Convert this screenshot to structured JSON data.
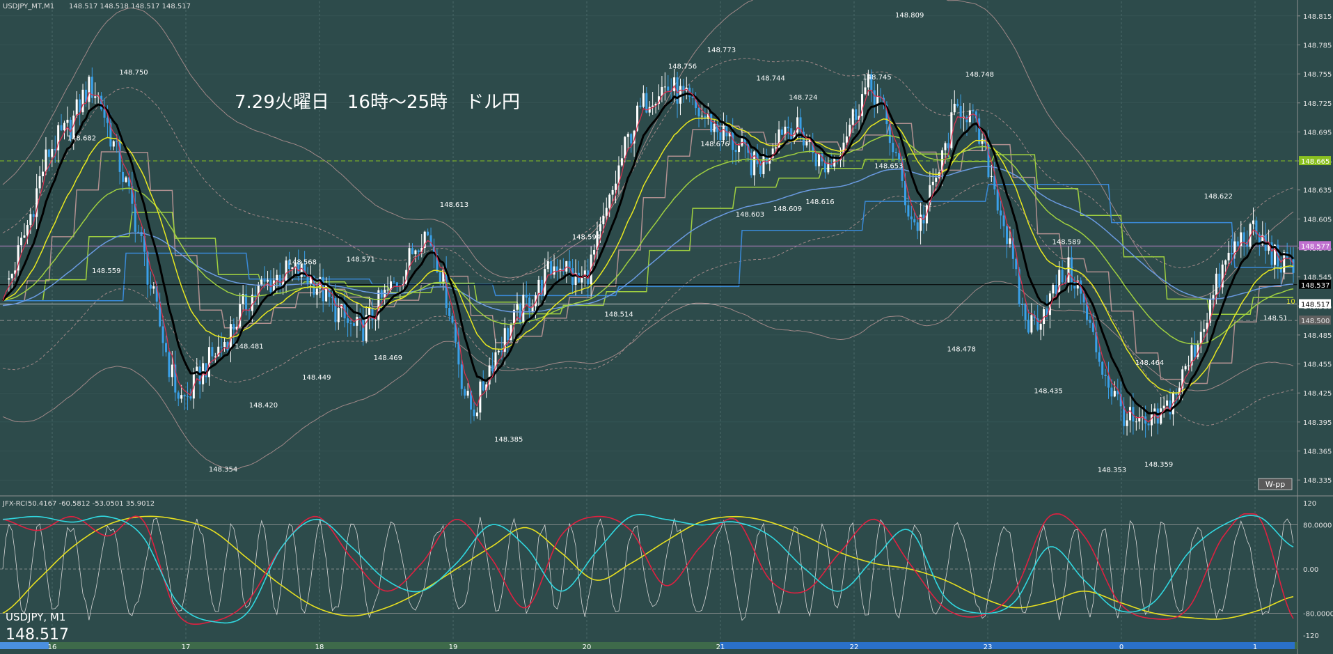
{
  "header": {
    "symbol_info": "USDJPY_MT,M1",
    "ohlc": "148.517 148.518 148.517 148.517"
  },
  "annotation_title": "7.29火曜日　16時～25時　ドル円",
  "indicator_header": {
    "name": "JFX-RCI",
    "values": "50.4167 -60.5812 -53.0501 35.9012"
  },
  "symbol_overlay": {
    "symbol": "USDJPY, M1",
    "price": "148.517"
  },
  "wpp_button": "W-pp",
  "right_edge_label": "10",
  "colors": {
    "background": "#2d4b4b",
    "candle": "#3aa0e8",
    "ma_fast": "#e03050",
    "ma_black": "#000000",
    "ma_yellow": "#e8e820",
    "ma_green": "#a0d040",
    "ma_blue": "#6a9ae0",
    "bands": "#a08888",
    "step_pink": "#b09090",
    "step_green": "#a0d040",
    "step_blue": "#3a8ad8",
    "pivot_green": "#8ac020",
    "pivot_purple": "#b080c0",
    "rci_white": "#d8d8d8",
    "rci_red": "#e02040",
    "rci_cyan": "#30d8e0",
    "rci_yellow": "#e8e020"
  },
  "chart_data": [
    {
      "type": "candlestick",
      "title": "",
      "ylim": [
        148.32,
        148.83
      ],
      "yticks": [
        "148.815",
        "148.785",
        "148.755",
        "148.725",
        "148.695",
        "148.665",
        "148.635",
        "148.605",
        "148.575",
        "148.545",
        "148.515",
        "148.485",
        "148.455",
        "148.425",
        "148.395",
        "148.365",
        "148.335"
      ],
      "x_tick_labels": [
        "16",
        "17",
        "18",
        "19",
        "20",
        "21",
        "22",
        "23",
        "0",
        "1"
      ],
      "hlines": [
        {
          "label": "148.665",
          "value": 148.665,
          "color": "#8ac020",
          "dashed": true
        },
        {
          "label": "148.577",
          "value": 148.577,
          "color": "#b080c0",
          "dashed": false
        },
        {
          "label": "148.537",
          "value": 148.537,
          "color": "#000000",
          "dashed": false
        },
        {
          "label": "148.517",
          "value": 148.517,
          "color": "#d0d0d0",
          "dashed": false
        },
        {
          "label": "148.500",
          "value": 148.5,
          "color": "#909090",
          "dashed": true
        }
      ],
      "price_anchors": [
        148.53,
        148.59,
        148.67,
        148.7,
        148.74,
        148.68,
        148.6,
        148.5,
        148.42,
        148.45,
        148.48,
        148.52,
        148.54,
        148.55,
        148.54,
        148.51,
        148.49,
        148.52,
        148.55,
        148.59,
        148.52,
        148.41,
        148.46,
        148.5,
        148.53,
        148.56,
        148.54,
        148.6,
        148.68,
        148.73,
        148.74,
        148.72,
        148.7,
        148.68,
        148.66,
        148.7,
        148.69,
        148.66,
        148.7,
        148.74,
        148.68,
        148.6,
        148.65,
        148.72,
        148.68,
        148.6,
        148.5,
        148.52,
        148.55,
        148.48,
        148.42,
        148.39,
        148.4,
        148.44,
        148.5,
        148.56,
        148.59,
        148.57,
        148.55
      ],
      "price_labels": [
        {
          "text": "148.682",
          "value": 148.682,
          "idx": 0.063
        },
        {
          "text": "148.559",
          "value": 148.559,
          "idx": 0.082
        },
        {
          "text": "148.750",
          "value": 148.75,
          "idx": 0.103
        },
        {
          "text": "148.354",
          "value": 148.354,
          "idx": 0.172
        },
        {
          "text": "148.481",
          "value": 148.481,
          "idx": 0.192
        },
        {
          "text": "148.420",
          "value": 148.42,
          "idx": 0.203
        },
        {
          "text": "148.568",
          "value": 148.568,
          "idx": 0.233
        },
        {
          "text": "148.449",
          "value": 148.449,
          "idx": 0.244
        },
        {
          "text": "148.571",
          "value": 148.571,
          "idx": 0.278
        },
        {
          "text": "148.469",
          "value": 148.469,
          "idx": 0.299
        },
        {
          "text": "148.613",
          "value": 148.613,
          "idx": 0.35
        },
        {
          "text": "148.385",
          "value": 148.385,
          "idx": 0.392
        },
        {
          "text": "148.594",
          "value": 148.594,
          "idx": 0.452
        },
        {
          "text": "148.514",
          "value": 148.514,
          "idx": 0.477
        },
        {
          "text": "148.756",
          "value": 148.756,
          "idx": 0.526
        },
        {
          "text": "148.773",
          "value": 148.773,
          "idx": 0.556
        },
        {
          "text": "148.676",
          "value": 148.676,
          "idx": 0.551
        },
        {
          "text": "148.603",
          "value": 148.603,
          "idx": 0.578
        },
        {
          "text": "148.744",
          "value": 148.744,
          "idx": 0.594
        },
        {
          "text": "148.609",
          "value": 148.609,
          "idx": 0.607
        },
        {
          "text": "148.724",
          "value": 148.724,
          "idx": 0.619
        },
        {
          "text": "148.616",
          "value": 148.616,
          "idx": 0.632
        },
        {
          "text": "148.745",
          "value": 148.745,
          "idx": 0.676
        },
        {
          "text": "148.653",
          "value": 148.653,
          "idx": 0.685
        },
        {
          "text": "148.809",
          "value": 148.809,
          "idx": 0.701
        },
        {
          "text": "148.748",
          "value": 148.748,
          "idx": 0.755
        },
        {
          "text": "148.478",
          "value": 148.478,
          "idx": 0.741
        },
        {
          "text": "148.589",
          "value": 148.589,
          "idx": 0.822
        },
        {
          "text": "148.435",
          "value": 148.435,
          "idx": 0.808
        },
        {
          "text": "148.353",
          "value": 148.353,
          "idx": 0.857
        },
        {
          "text": "148.464",
          "value": 148.464,
          "idx": 0.886
        },
        {
          "text": "148.359",
          "value": 148.359,
          "idx": 0.893
        },
        {
          "text": "148.622",
          "value": 148.622,
          "idx": 0.939
        },
        {
          "text": "148.51",
          "value": 148.51,
          "idx": 0.983
        }
      ]
    },
    {
      "type": "line",
      "title": "JFX-RCI",
      "ylim": [
        -130,
        130
      ],
      "yticks": [
        "120",
        "80.0000",
        "0.00",
        "-80.0000",
        "-120"
      ],
      "series": [
        {
          "color": "#e8e020",
          "values": [
            -80,
            -20,
            40,
            80,
            95,
            90,
            70,
            20,
            -30,
            -70,
            -85,
            -70,
            -40,
            0,
            40,
            75,
            30,
            -20,
            10,
            50,
            85,
            95,
            85,
            60,
            30,
            10,
            0,
            -20,
            -50,
            -70,
            -60,
            -40,
            -60,
            -80,
            -88,
            -90,
            -75,
            -50
          ]
        },
        {
          "color": "#e02040",
          "values": [
            90,
            70,
            95,
            60,
            90,
            -80,
            -95,
            -60,
            40,
            95,
            20,
            -40,
            10,
            90,
            20,
            -70,
            60,
            95,
            70,
            -30,
            40,
            90,
            -20,
            -40,
            30,
            90,
            10,
            -70,
            -85,
            -40,
            95,
            60,
            -60,
            -90,
            -70,
            60,
            95,
            -90
          ]
        },
        {
          "color": "#30d8e0",
          "values": [
            90,
            95,
            85,
            95,
            60,
            -60,
            -95,
            -80,
            40,
            90,
            40,
            -20,
            -40,
            10,
            80,
            40,
            -40,
            30,
            95,
            90,
            80,
            85,
            60,
            0,
            -40,
            20,
            70,
            -50,
            -80,
            -60,
            40,
            -20,
            -75,
            -60,
            30,
            80,
            95,
            40
          ]
        }
      ]
    }
  ]
}
